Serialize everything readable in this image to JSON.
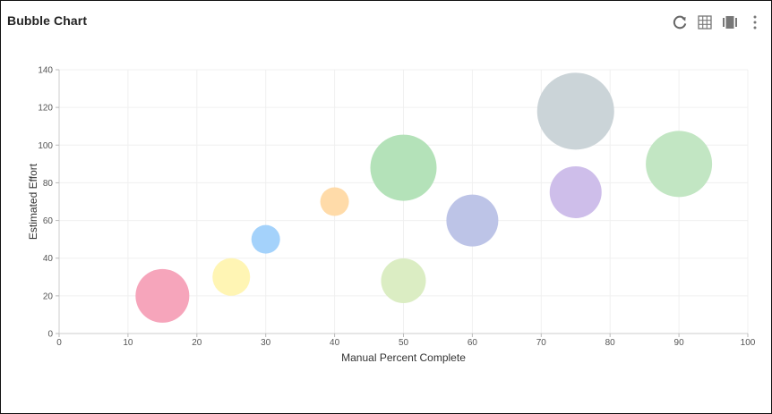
{
  "widget": {
    "title": "Bubble Chart",
    "toolbar": [
      {
        "icon": "refresh-icon"
      },
      {
        "icon": "table-view-icon"
      },
      {
        "icon": "chart-view-icon"
      },
      {
        "icon": "more-options-icon"
      }
    ]
  },
  "chart_data": {
    "type": "scatter",
    "variant": "bubble",
    "title": "",
    "xlabel": "Manual Percent Complete",
    "ylabel": "Estimated Effort",
    "xlim": [
      0,
      100
    ],
    "ylim": [
      0,
      140
    ],
    "xticks": [
      0,
      10,
      20,
      30,
      40,
      50,
      60,
      70,
      80,
      90,
      100
    ],
    "yticks": [
      0,
      20,
      40,
      60,
      80,
      100,
      120,
      140
    ],
    "grid": true,
    "legend": "none",
    "points": [
      {
        "x": 15,
        "y": 20,
        "size": 30,
        "color": "#f5a0b7"
      },
      {
        "x": 25,
        "y": 30,
        "size": 21,
        "color": "#fff4b0"
      },
      {
        "x": 30,
        "y": 50,
        "size": 16,
        "color": "#9fd0fb"
      },
      {
        "x": 40,
        "y": 70,
        "size": 16,
        "color": "#ffd9a4"
      },
      {
        "x": 50,
        "y": 88,
        "size": 37,
        "color": "#b0e0b5"
      },
      {
        "x": 50,
        "y": 28,
        "size": 25,
        "color": "#d9ecc0"
      },
      {
        "x": 60,
        "y": 60,
        "size": 29,
        "color": "#b9c1e6"
      },
      {
        "x": 75,
        "y": 118,
        "size": 43,
        "color": "#c8d2d6"
      },
      {
        "x": 75,
        "y": 75,
        "size": 29,
        "color": "#cbbbe9"
      },
      {
        "x": 90,
        "y": 90,
        "size": 37,
        "color": "#bfe5c0"
      }
    ]
  }
}
